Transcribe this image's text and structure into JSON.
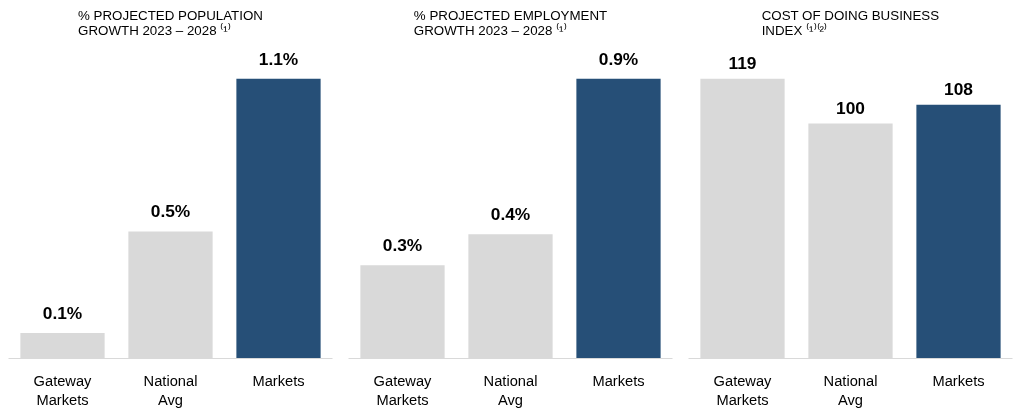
{
  "chart_data": [
    {
      "type": "bar",
      "title": "% PROJECTED POPULATION GROWTH 2023 – 2028 ⁽¹⁾",
      "categories": [
        "Gateway Markets",
        "National Avg",
        "Markets"
      ],
      "values": [
        0.1,
        0.5,
        1.1
      ],
      "colors": [
        "#d9d9d9",
        "#d9d9d9",
        "#264f77"
      ],
      "value_labels": [
        "0.1%",
        "0.5%",
        "1.1%"
      ],
      "tick_labels": "x"
    },
    {
      "type": "bar",
      "title": "% PROJECTED EMPLOYMENT GROWTH 2023 – 2028 ⁽¹⁾",
      "categories": [
        "Gateway Markets",
        "National Avg",
        "Markets"
      ],
      "values": [
        0.3,
        0.4,
        0.9
      ],
      "colors": [
        "#d9d9d9",
        "#d9d9d9",
        "#264f77"
      ],
      "value_labels": [
        "0.3%",
        "0.4%",
        "0.9%"
      ],
      "tick_labels": "x"
    },
    {
      "type": "bar",
      "title": "COST OF DOING BUSINESS INDEX ⁽¹⁾⁽²⁾",
      "categories": [
        "Gateway Markets",
        "National Avg",
        "Markets"
      ],
      "values": [
        119,
        100,
        108
      ],
      "colors": [
        "#d9d9d9",
        "#d9d9d9",
        "#264f77"
      ],
      "value_labels": [
        "119",
        "100",
        "108"
      ],
      "tick_labels": "x"
    }
  ]
}
